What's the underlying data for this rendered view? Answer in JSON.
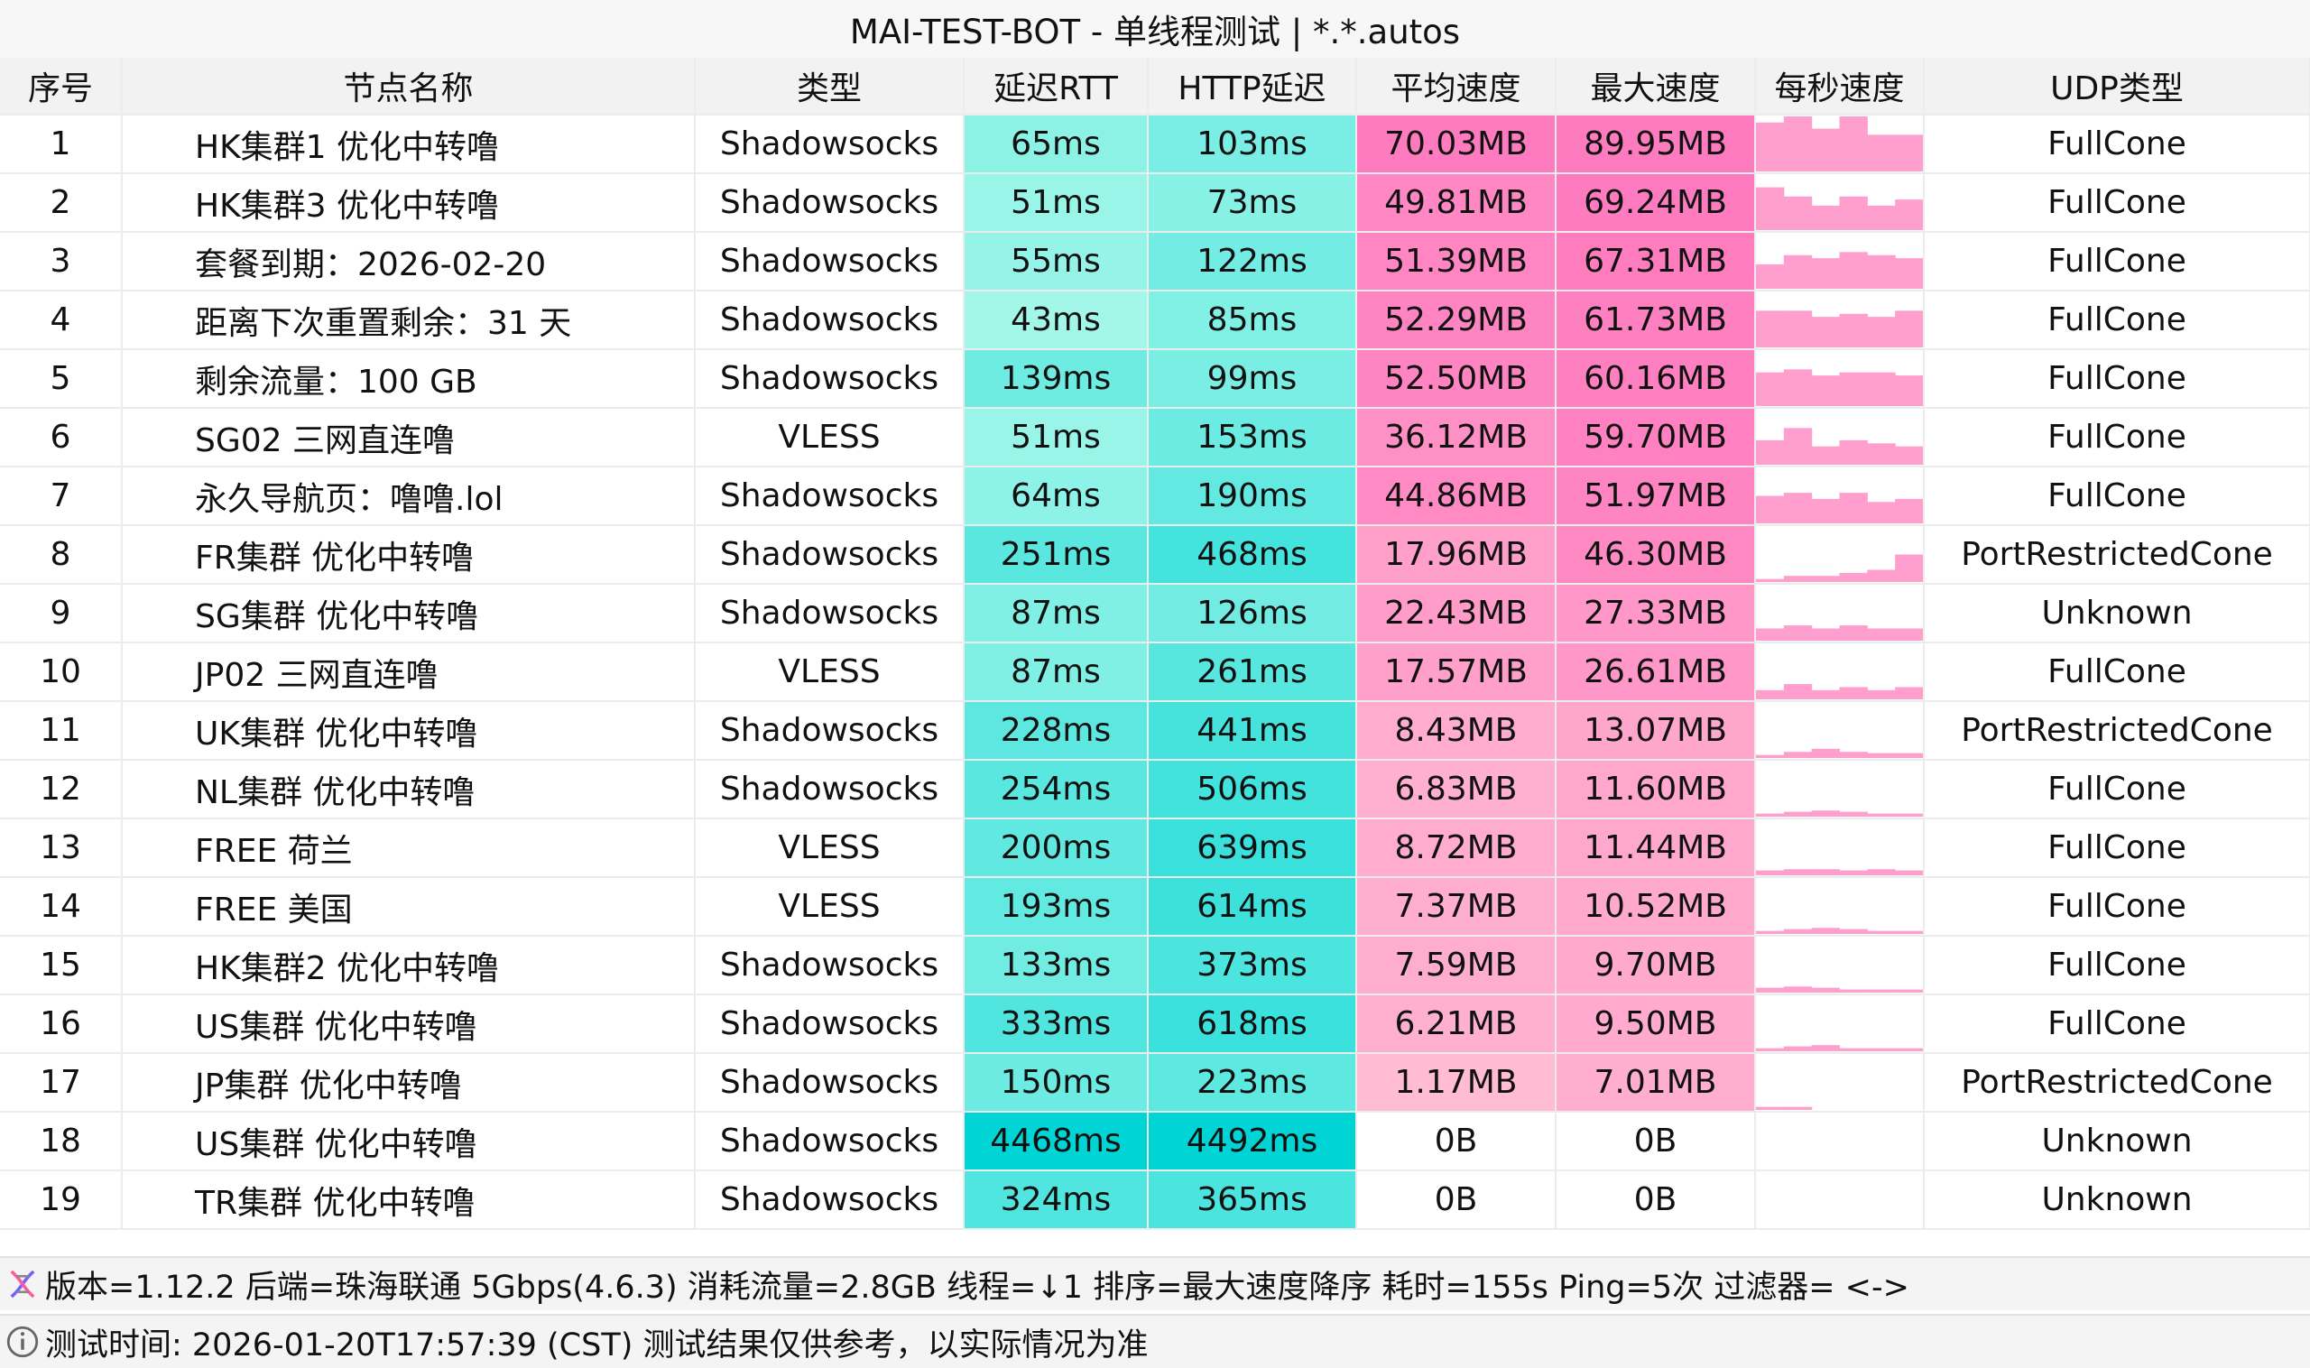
{
  "window": {
    "title": "MAI-TEST-BOT - 单线程测试 | *.*.autos"
  },
  "table": {
    "headers": [
      "序号",
      "节点名称",
      "类型",
      "延迟RTT",
      "HTTP延迟",
      "平均速度",
      "最大速度",
      "每秒速度",
      "UDP类型"
    ],
    "rows": [
      [
        "1",
        "HK集群1 优化中转噜",
        "Shadowsocks",
        "65ms",
        "103ms",
        "70.03MB",
        "89.95MB",
        "FullCone"
      ],
      [
        "2",
        "HK集群3 优化中转噜",
        "Shadowsocks",
        "51ms",
        "73ms",
        "49.81MB",
        "69.24MB",
        "FullCone"
      ],
      [
        "3",
        "套餐到期：2026-02-20",
        "Shadowsocks",
        "55ms",
        "122ms",
        "51.39MB",
        "67.31MB",
        "FullCone"
      ],
      [
        "4",
        "距离下次重置剩余：31 天",
        "Shadowsocks",
        "43ms",
        "85ms",
        "52.29MB",
        "61.73MB",
        "FullCone"
      ],
      [
        "5",
        "剩余流量：100 GB",
        "Shadowsocks",
        "139ms",
        "99ms",
        "52.50MB",
        "60.16MB",
        "FullCone"
      ],
      [
        "6",
        "SG02 三网直连噜",
        "VLESS",
        "51ms",
        "153ms",
        "36.12MB",
        "59.70MB",
        "FullCone"
      ],
      [
        "7",
        "永久导航页：噜噜.lol",
        "Shadowsocks",
        "64ms",
        "190ms",
        "44.86MB",
        "51.97MB",
        "FullCone"
      ],
      [
        "8",
        "FR集群 优化中转噜",
        "Shadowsocks",
        "251ms",
        "468ms",
        "17.96MB",
        "46.30MB",
        "PortRestrictedCone"
      ],
      [
        "9",
        "SG集群 优化中转噜",
        "Shadowsocks",
        "87ms",
        "126ms",
        "22.43MB",
        "27.33MB",
        "Unknown"
      ],
      [
        "10",
        "JP02 三网直连噜",
        "VLESS",
        "87ms",
        "261ms",
        "17.57MB",
        "26.61MB",
        "FullCone"
      ],
      [
        "11",
        "UK集群 优化中转噜",
        "Shadowsocks",
        "228ms",
        "441ms",
        "8.43MB",
        "13.07MB",
        "PortRestrictedCone"
      ],
      [
        "12",
        "NL集群 优化中转噜",
        "Shadowsocks",
        "254ms",
        "506ms",
        "6.83MB",
        "11.60MB",
        "FullCone"
      ],
      [
        "13",
        "FREE 荷兰",
        "VLESS",
        "200ms",
        "639ms",
        "8.72MB",
        "11.44MB",
        "FullCone"
      ],
      [
        "14",
        "FREE 美国",
        "VLESS",
        "193ms",
        "614ms",
        "7.37MB",
        "10.52MB",
        "FullCone"
      ],
      [
        "15",
        "HK集群2 优化中转噜",
        "Shadowsocks",
        "133ms",
        "373ms",
        "7.59MB",
        "9.70MB",
        "FullCone"
      ],
      [
        "16",
        "US集群 优化中转噜",
        "Shadowsocks",
        "333ms",
        "618ms",
        "6.21MB",
        "9.50MB",
        "FullCone"
      ],
      [
        "17",
        "JP集群 优化中转噜",
        "Shadowsocks",
        "150ms",
        "223ms",
        "1.17MB",
        "7.01MB",
        "PortRestrictedCone"
      ],
      [
        "18",
        "US集群 优化中转噜",
        "Shadowsocks",
        "4468ms",
        "4492ms",
        "0B",
        "0B",
        "Unknown"
      ],
      [
        "19",
        "TR集群 优化中转噜",
        "Shadowsocks",
        "324ms",
        "365ms",
        "0B",
        "0B",
        "Unknown"
      ]
    ],
    "speed_samples_mb": [
      [
        80,
        90,
        70,
        90,
        60,
        60
      ],
      [
        70,
        55,
        40,
        55,
        40,
        50
      ],
      [
        40,
        55,
        50,
        60,
        55,
        50
      ],
      [
        60,
        60,
        50,
        55,
        50,
        60
      ],
      [
        55,
        60,
        50,
        55,
        55,
        50
      ],
      [
        40,
        60,
        30,
        40,
        35,
        30
      ],
      [
        45,
        50,
        40,
        50,
        35,
        40
      ],
      [
        5,
        10,
        10,
        15,
        20,
        45
      ],
      [
        20,
        25,
        20,
        25,
        20,
        20
      ],
      [
        15,
        25,
        15,
        20,
        15,
        20
      ],
      [
        5,
        10,
        15,
        10,
        8,
        8
      ],
      [
        5,
        8,
        10,
        8,
        5,
        5
      ],
      [
        8,
        10,
        10,
        8,
        10,
        8
      ],
      [
        5,
        8,
        10,
        8,
        5,
        5
      ],
      [
        8,
        10,
        8,
        5,
        5,
        5
      ],
      [
        5,
        8,
        10,
        5,
        5,
        5
      ],
      [
        5,
        5,
        0,
        0,
        0,
        0
      ],
      [
        0,
        0,
        0,
        0,
        0,
        0
      ],
      [
        0,
        0,
        0,
        0,
        0,
        0
      ]
    ],
    "colors": {
      "rtt_max": "#00d4d4",
      "rtt_min": "#a8f8ea",
      "speed_max": "#ff7bbf",
      "speed_min": "#ffc6d6",
      "spark_fill": "#ff9fce"
    }
  },
  "footer": {
    "line1_icon": "dna-icon",
    "line1": "版本=1.12.2  后端=珠海联通 5Gbps(4.6.3) 消耗流量=2.8GB  线程=↓1  排序=最大速度降序  耗时=155s  Ping=5次  过滤器= <->",
    "line2_icon": "info-icon",
    "line2": "测试时间: 2026-01-20T17:57:39 (CST)  测试结果仅供参考，以实际情况为准"
  }
}
